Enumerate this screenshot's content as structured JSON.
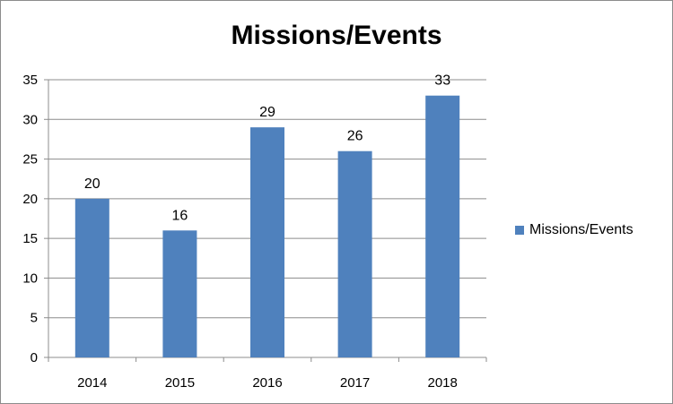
{
  "chart_data": {
    "type": "bar",
    "title": "Missions/Events",
    "categories": [
      "2014",
      "2015",
      "2016",
      "2017",
      "2018"
    ],
    "series": [
      {
        "name": "Missions/Events",
        "values": [
          20,
          16,
          29,
          26,
          33
        ],
        "color": "#4f81bd"
      }
    ],
    "data_labels": [
      "20",
      "16",
      "29",
      "26",
      "33"
    ],
    "y_ticks": [
      "0",
      "5",
      "10",
      "15",
      "20",
      "25",
      "30",
      "35"
    ],
    "ylim": [
      0,
      35
    ],
    "grid": true,
    "legend_position": "right"
  }
}
